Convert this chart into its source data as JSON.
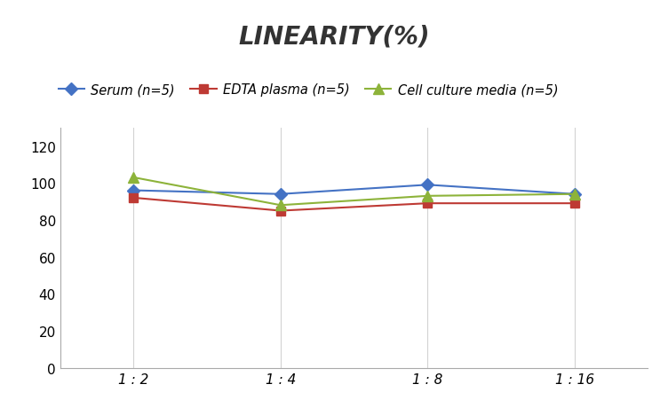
{
  "title": "LINEARITY(%)",
  "x_labels": [
    "1 : 2",
    "1 : 4",
    "1 : 8",
    "1 : 16"
  ],
  "x_positions": [
    0,
    1,
    2,
    3
  ],
  "series": [
    {
      "name": "Serum (n=5)",
      "values": [
        96,
        94,
        99,
        94
      ],
      "color": "#4472C4",
      "marker": "D",
      "marker_size": 7
    },
    {
      "name": "EDTA plasma (n=5)",
      "values": [
        92,
        85,
        89,
        89
      ],
      "color": "#BE3A34",
      "marker": "s",
      "marker_size": 7
    },
    {
      "name": "Cell culture media (n=5)",
      "values": [
        103,
        88,
        93,
        94
      ],
      "color": "#8DB33A",
      "marker": "^",
      "marker_size": 8
    }
  ],
  "ylim": [
    0,
    130
  ],
  "yticks": [
    0,
    20,
    40,
    60,
    80,
    100,
    120
  ],
  "background_color": "#ffffff",
  "grid_color": "#d3d3d3",
  "title_fontsize": 20,
  "legend_fontsize": 10.5,
  "tick_fontsize": 11
}
